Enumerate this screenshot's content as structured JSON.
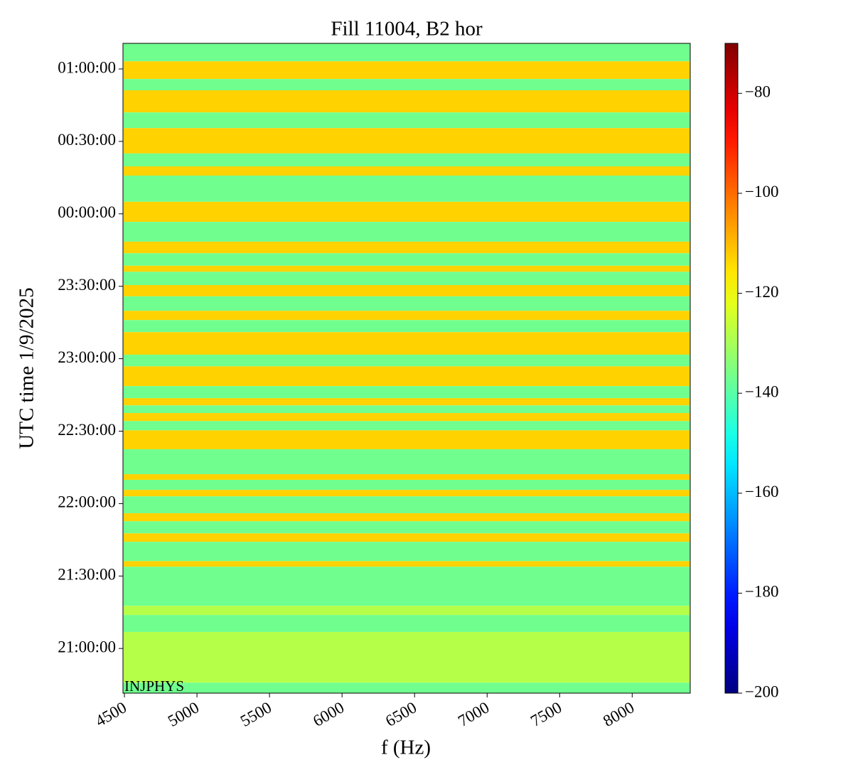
{
  "chart_data": {
    "type": "heatmap",
    "title": "Fill 11004, B2 hor",
    "xlabel": "f (Hz)",
    "ylabel": "UTC time 1/9/2025",
    "annotation": "INJPHYS",
    "xlim": [
      4490,
      8400
    ],
    "xticks": [
      4500,
      5000,
      5500,
      6000,
      6500,
      7000,
      7500,
      8000
    ],
    "ylim": [
      "20:41:30",
      "01:10:36"
    ],
    "yticks": [
      "21:00:00",
      "21:30:00",
      "22:00:00",
      "22:30:00",
      "23:00:00",
      "23:30:00",
      "00:00:00",
      "00:30:00",
      "01:00:00"
    ],
    "y_edges": [
      "01:10:36",
      "01:03:10",
      "00:55:50",
      "00:51:10",
      "00:42:00",
      "00:35:30",
      "00:25:00",
      "00:19:40",
      "00:15:50",
      "00:05:00",
      "23:56:40",
      "23:48:30",
      "23:43:40",
      "23:38:30",
      "23:36:00",
      "23:30:30",
      "23:25:50",
      "23:19:50",
      "23:16:00",
      "23:11:00",
      "23:01:40",
      "22:56:50",
      "22:48:40",
      "22:43:40",
      "22:40:40",
      "22:37:30",
      "22:34:10",
      "22:30:20",
      "22:22:30",
      "22:12:10",
      "22:09:50",
      "22:05:40",
      "22:03:00",
      "21:56:00",
      "21:52:40",
      "21:47:40",
      "21:44:10",
      "21:36:10",
      "21:33:50",
      "21:17:40",
      "21:13:50",
      "21:06:50",
      "20:45:50",
      "20:41:30"
    ],
    "values": [
      -137,
      -113,
      -137,
      -113,
      -137,
      -113,
      -137,
      -113,
      -137,
      -113,
      -137,
      -113,
      -137,
      -113,
      -137,
      -113,
      -137,
      -113,
      -137,
      -113,
      -137,
      -113,
      -137,
      -113,
      -137,
      -113,
      -137,
      -113,
      -137,
      -113,
      -137,
      -113,
      -137,
      -113,
      -137,
      -113,
      -137,
      -113,
      -137,
      -128,
      -137,
      -128,
      -137
    ],
    "colormap": "jet",
    "clim": [
      -200,
      -70
    ],
    "cticks": [
      {
        "value": -200,
        "label": "−200"
      },
      {
        "value": -180,
        "label": "−180"
      },
      {
        "value": -160,
        "label": "−160"
      },
      {
        "value": -140,
        "label": "−140"
      },
      {
        "value": -120,
        "label": "−120"
      },
      {
        "value": -100,
        "label": "−100"
      },
      {
        "value": -80,
        "label": "−80"
      }
    ]
  }
}
